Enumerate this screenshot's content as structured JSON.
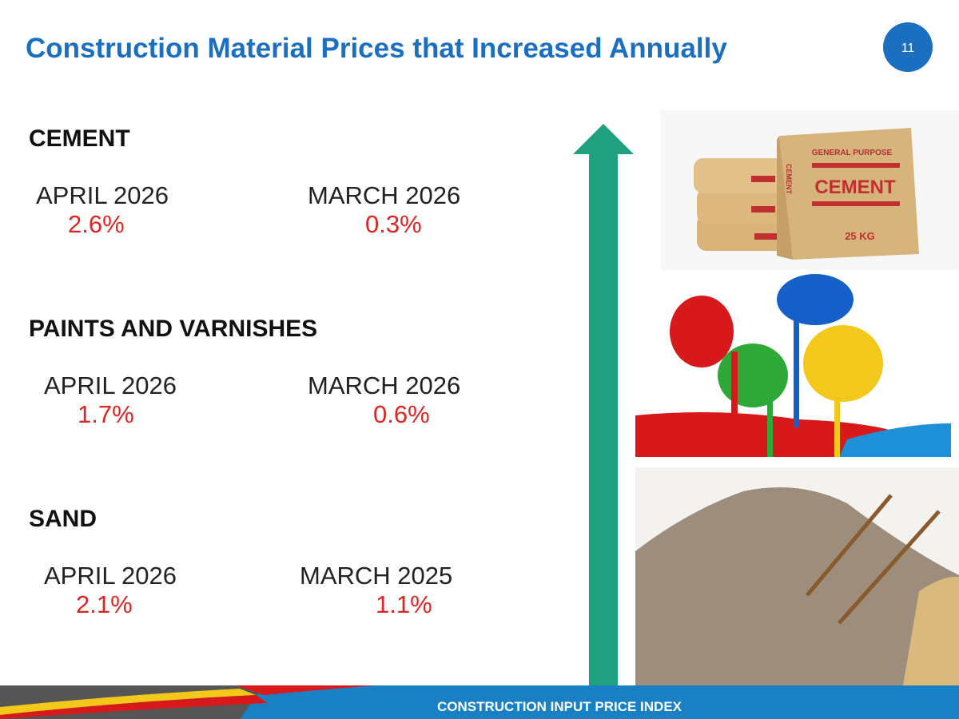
{
  "header": {
    "title": "Construction Material Prices  that Increased Annually",
    "page_number": "11"
  },
  "sections": [
    {
      "name": "CEMENT",
      "periods": [
        {
          "label": "APRIL 2026",
          "value": "2.6%"
        },
        {
          "label": "MARCH 2026",
          "value": "0.3%"
        }
      ]
    },
    {
      "name": "PAINTS AND VARNISHES",
      "periods": [
        {
          "label": "APRIL 2026",
          "value": "1.7%"
        },
        {
          "label": "MARCH 2026",
          "value": "0.6%"
        }
      ]
    },
    {
      "name": "SAND",
      "periods": [
        {
          "label": "APRIL 2026",
          "value": "2.1%"
        },
        {
          "label": "MARCH 2025",
          "value": "1.1%"
        }
      ]
    }
  ],
  "images": {
    "cement_bag": {
      "brand": "GENERAL PURPOSE",
      "label": "CEMENT",
      "side": "CEMENT",
      "weight": "25 KG"
    }
  },
  "footer": {
    "text": "CONSTRUCTION INPUT PRICE INDEX"
  }
}
